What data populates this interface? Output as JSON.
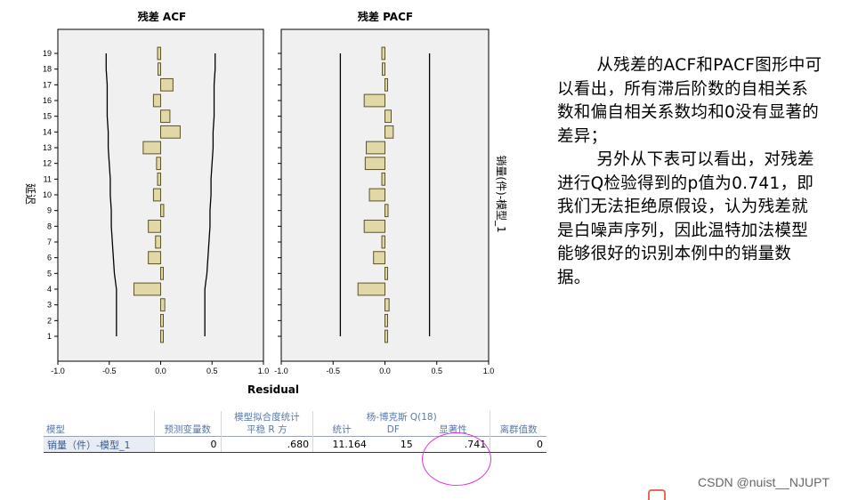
{
  "chart_data": [
    {
      "type": "bar",
      "orientation": "horizontal",
      "title": "残差 ACF",
      "xlabel": "Residual",
      "ylabel": "延迟",
      "xlim": [
        -1.0,
        1.0
      ],
      "xticks": [
        "-1.0",
        "-0.5",
        "0.0",
        "0.5",
        "1.0"
      ],
      "lags": [
        1,
        2,
        3,
        4,
        5,
        6,
        7,
        8,
        9,
        10,
        11,
        12,
        13,
        14,
        15,
        16,
        17,
        18,
        19
      ],
      "values": [
        0.02,
        0.02,
        0.04,
        -0.26,
        0.01,
        -0.12,
        -0.05,
        -0.12,
        0.03,
        -0.07,
        -0.03,
        -0.04,
        -0.17,
        0.19,
        0.09,
        -0.07,
        0.12,
        -0.02,
        -0.03
      ],
      "conf_upper": [
        0.43,
        0.43,
        0.43,
        0.43,
        0.45,
        0.46,
        0.47,
        0.48,
        0.48,
        0.49,
        0.49,
        0.5,
        0.51,
        0.51,
        0.52,
        0.52,
        0.52,
        0.53,
        0.53
      ],
      "conf_lower": [
        -0.43,
        -0.43,
        -0.43,
        -0.43,
        -0.45,
        -0.46,
        -0.47,
        -0.48,
        -0.48,
        -0.49,
        -0.49,
        -0.5,
        -0.51,
        -0.51,
        -0.52,
        -0.52,
        -0.52,
        -0.53,
        -0.53
      ]
    },
    {
      "type": "bar",
      "orientation": "horizontal",
      "title": "残差 PACF",
      "xlabel": "Residual",
      "side_label": "销量(件)-模型_1",
      "xlim": [
        -1.0,
        1.0
      ],
      "xticks": [
        "-1.0",
        "-0.5",
        "0.0",
        "0.5",
        "1.0"
      ],
      "lags": [
        1,
        2,
        3,
        4,
        5,
        6,
        7,
        8,
        9,
        10,
        11,
        12,
        13,
        14,
        15,
        16,
        17,
        18,
        19
      ],
      "values": [
        0.02,
        0.02,
        0.04,
        -0.26,
        0.01,
        -0.11,
        -0.03,
        -0.2,
        0.03,
        -0.15,
        -0.03,
        -0.19,
        -0.18,
        0.08,
        0.06,
        -0.2,
        0.01,
        -0.02,
        -0.03
      ],
      "conf_upper": 0.43,
      "conf_lower": -0.43
    }
  ],
  "note": {
    "p1": "从残差的ACF和PACF图形中可以看出，所有滞后阶数的自相关系数和偏自相关系数均和0没有显著的差异；",
    "p2": "另外从下表可以看出，对残差进行Q检验得到的p值为0.741，即我们无法拒绝原假设，认为残差就是白噪声序列，因此温特加法模型能够很好的识别本例中的销量数据。"
  },
  "table": {
    "group_fit": "模型拟合度统计",
    "group_ljung": "杨-博克斯 Q(18)",
    "headers": {
      "model": "模型",
      "predictors": "预测变量数",
      "r2": "平稳 R 方",
      "stat": "统计",
      "df": "DF",
      "sig": "显著性",
      "outliers": "离群值数"
    },
    "row": {
      "model": "销量（件）-模型_1",
      "predictors": "0",
      "r2": ".680",
      "stat": "11.164",
      "df": "15",
      "sig": ".741",
      "outliers": "0"
    }
  },
  "watermark": "CSDN @nuist__NJUPT",
  "colors": {
    "bar_fill": "#e0d8a6",
    "bar_stroke": "#5c5326",
    "panel_bg": "#f0f0f0",
    "highlight": "#e034e0"
  }
}
